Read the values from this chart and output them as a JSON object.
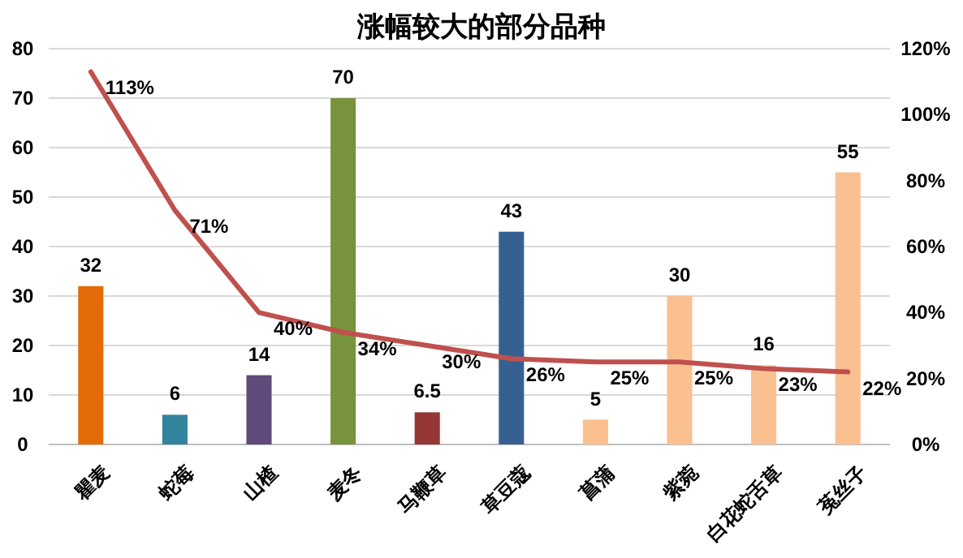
{
  "chart_data": {
    "type": "bar",
    "title": "涨幅较大的部分品种",
    "categories": [
      "瞿麦",
      "蛇莓",
      "山楂",
      "麦冬",
      "马鞭草",
      "草豆蔻",
      "菖蒲",
      "紫菀",
      "白花蛇舌草",
      "菟丝子"
    ],
    "series": [
      {
        "colors": [
          "#e36c09",
          "#31849b",
          "#604a7b",
          "#77933c",
          "#953735",
          "#376092",
          "#fac090",
          "#fac090",
          "#fac090",
          "#fac090"
        ],
        "values": [
          32,
          6,
          14,
          70,
          6.5,
          43,
          5,
          30,
          16,
          55
        ],
        "value_labels": [
          "32",
          "6",
          "14",
          "70",
          "6.5",
          "43",
          "5",
          "30",
          "16",
          "55"
        ]
      },
      {
        "type": "line",
        "axis": "y2",
        "color": "#c0504d",
        "values": [
          113,
          71,
          40,
          34,
          30,
          26,
          25,
          25,
          23,
          22
        ],
        "value_labels": [
          "113%",
          "71%",
          "40%",
          "34%",
          "30%",
          "26%",
          "25%",
          "25%",
          "23%",
          "22%"
        ]
      }
    ],
    "ylim": [
      0,
      80
    ],
    "yticks": [
      0,
      10,
      20,
      30,
      40,
      50,
      60,
      70,
      80
    ],
    "y2lim": [
      0,
      120
    ],
    "y2ticks": [
      {
        "value": 0,
        "label": "0%"
      },
      {
        "value": 20,
        "label": "20%"
      },
      {
        "value": 40,
        "label": "40%"
      },
      {
        "value": 60,
        "label": "60%"
      },
      {
        "value": 80,
        "label": "80%"
      },
      {
        "value": 100,
        "label": "100%"
      },
      {
        "value": 120,
        "label": "120%"
      }
    ],
    "grid": "y",
    "marker": "none",
    "line_style": "solid"
  }
}
